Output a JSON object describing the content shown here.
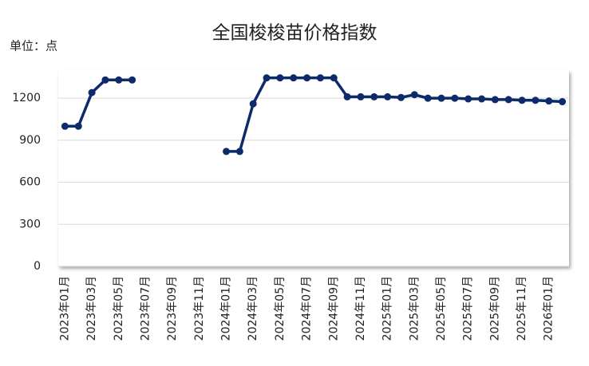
{
  "chart_data": {
    "type": "line",
    "title": "全国梭梭苗价格指数",
    "unit": "单位：点",
    "categories": [
      "2023年01月",
      null,
      "2023年03月",
      null,
      "2023年05月",
      null,
      "2023年07月",
      null,
      "2023年09月",
      null,
      "2023年11月",
      null,
      "2024年01月",
      null,
      "2024年03月",
      null,
      "2024年05月",
      null,
      "2024年07月",
      null,
      "2024年09月",
      null,
      "2024年11月",
      null,
      "2025年01月",
      null,
      "2025年03月",
      null,
      "2025年05月",
      null,
      "2025年07月",
      null,
      "2025年09月",
      null,
      "2025年11月",
      null,
      "2026年01月",
      null
    ],
    "series": [
      {
        "name": "全国梭梭苗价格指数",
        "color": "#0d2a6b",
        "values": [
          1000,
          1000,
          1240,
          1330,
          1330,
          1330,
          null,
          null,
          null,
          null,
          null,
          null,
          820,
          820,
          1160,
          1345,
          1345,
          1345,
          1345,
          1345,
          1345,
          1210,
          1210,
          1210,
          1210,
          1205,
          1225,
          1200,
          1200,
          1200,
          1195,
          1195,
          1190,
          1190,
          1185,
          1185,
          1180,
          1175
        ]
      }
    ],
    "ylim": [
      0,
      1400
    ],
    "yticks": [
      0,
      300,
      600,
      900,
      1200
    ],
    "grid": true
  }
}
